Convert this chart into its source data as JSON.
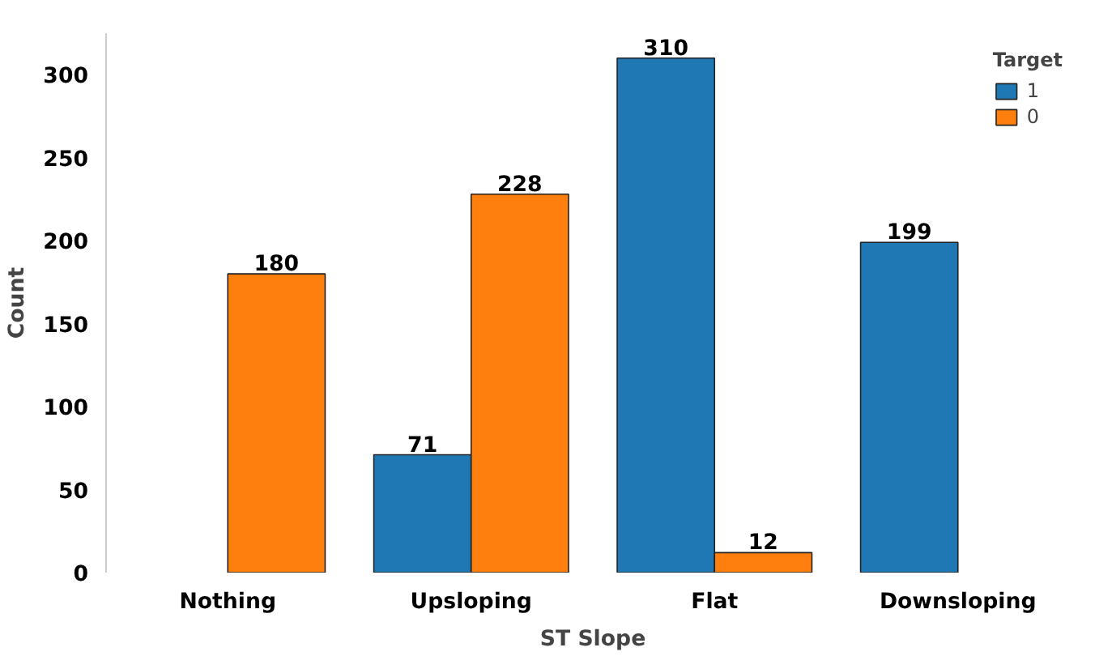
{
  "chart_data": {
    "type": "bar",
    "xlabel": "ST Slope",
    "ylabel": "Count",
    "legend_title": "Target",
    "categories": [
      "Nothing",
      "Upsloping",
      "Flat",
      "Downsloping"
    ],
    "series": [
      {
        "name": "1",
        "color": "#1f77b4",
        "values": [
          null,
          71,
          310,
          199
        ]
      },
      {
        "name": "0",
        "color": "#ff7f0e",
        "values": [
          180,
          228,
          12,
          null
        ]
      }
    ],
    "ylim": [
      0,
      325
    ],
    "yticks": [
      0,
      50,
      100,
      150,
      200,
      250,
      300
    ],
    "data_labels": true,
    "legend": "top right",
    "grid": false
  }
}
